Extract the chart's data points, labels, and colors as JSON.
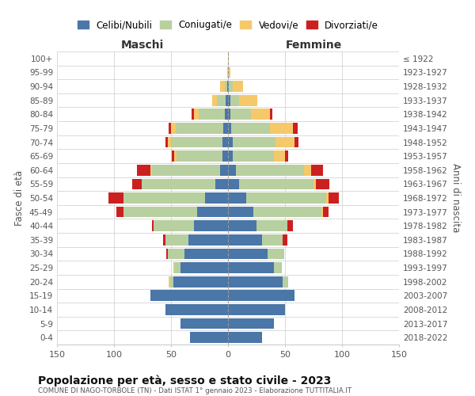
{
  "age_groups": [
    "100+",
    "95-99",
    "90-94",
    "85-89",
    "80-84",
    "75-79",
    "70-74",
    "65-69",
    "60-64",
    "55-59",
    "50-54",
    "45-49",
    "40-44",
    "35-39",
    "30-34",
    "25-29",
    "20-24",
    "15-19",
    "10-14",
    "5-9",
    "0-4"
  ],
  "birth_years": [
    "≤ 1922",
    "1923-1927",
    "1928-1932",
    "1933-1937",
    "1938-1942",
    "1943-1947",
    "1948-1952",
    "1953-1957",
    "1958-1962",
    "1963-1967",
    "1968-1972",
    "1973-1977",
    "1978-1982",
    "1983-1987",
    "1988-1992",
    "1993-1997",
    "1998-2002",
    "2003-2007",
    "2008-2012",
    "2013-2017",
    "2018-2022"
  ],
  "maschi_celibi": [
    0,
    0,
    1,
    2,
    3,
    4,
    5,
    5,
    7,
    11,
    20,
    27,
    30,
    35,
    38,
    42,
    48,
    68,
    55,
    42,
    33
  ],
  "maschi_coniugati": [
    0,
    0,
    2,
    8,
    23,
    42,
    45,
    40,
    60,
    65,
    72,
    65,
    35,
    20,
    15,
    5,
    3,
    0,
    0,
    0,
    0
  ],
  "maschi_vedovi": [
    0,
    1,
    4,
    4,
    4,
    4,
    3,
    2,
    1,
    0,
    0,
    0,
    0,
    0,
    0,
    1,
    1,
    0,
    0,
    0,
    0
  ],
  "maschi_divorziati": [
    0,
    0,
    0,
    0,
    2,
    2,
    2,
    2,
    12,
    8,
    13,
    6,
    2,
    2,
    1,
    0,
    0,
    0,
    0,
    0,
    0
  ],
  "femmine_nubili": [
    0,
    0,
    1,
    2,
    2,
    3,
    4,
    4,
    7,
    10,
    16,
    22,
    25,
    30,
    35,
    40,
    48,
    58,
    50,
    40,
    30
  ],
  "femmine_coniugate": [
    0,
    0,
    3,
    8,
    18,
    34,
    38,
    36,
    60,
    65,
    70,
    60,
    27,
    18,
    14,
    7,
    5,
    0,
    0,
    0,
    0
  ],
  "femmine_vedove": [
    1,
    2,
    9,
    16,
    17,
    20,
    16,
    10,
    6,
    2,
    2,
    1,
    0,
    0,
    0,
    0,
    0,
    0,
    0,
    0,
    0
  ],
  "femmine_divorziate": [
    0,
    0,
    0,
    0,
    2,
    4,
    4,
    3,
    10,
    12,
    9,
    5,
    5,
    4,
    0,
    0,
    0,
    0,
    0,
    0,
    0
  ],
  "color_celibi": "#4a76a8",
  "color_coniugati": "#b8cfa0",
  "color_vedovi": "#f5c96a",
  "color_divorziati": "#cc2020",
  "title": "Popolazione per età, sesso e stato civile - 2023",
  "subtitle": "COMUNE DI NAGO-TORBOLE (TN) - Dati ISTAT 1° gennaio 2023 - Elaborazione TUTTITALIA.IT",
  "legend_labels": [
    "Celibi/Nubili",
    "Coniugati/e",
    "Vedovi/e",
    "Divorziati/e"
  ],
  "xlabel_left": "Maschi",
  "xlabel_right": "Femmine",
  "ylabel_left": "Fasce di età",
  "ylabel_right": "Anni di nascita",
  "xlim": 150,
  "bg_color": "#ffffff",
  "grid_color": "#cccccc"
}
